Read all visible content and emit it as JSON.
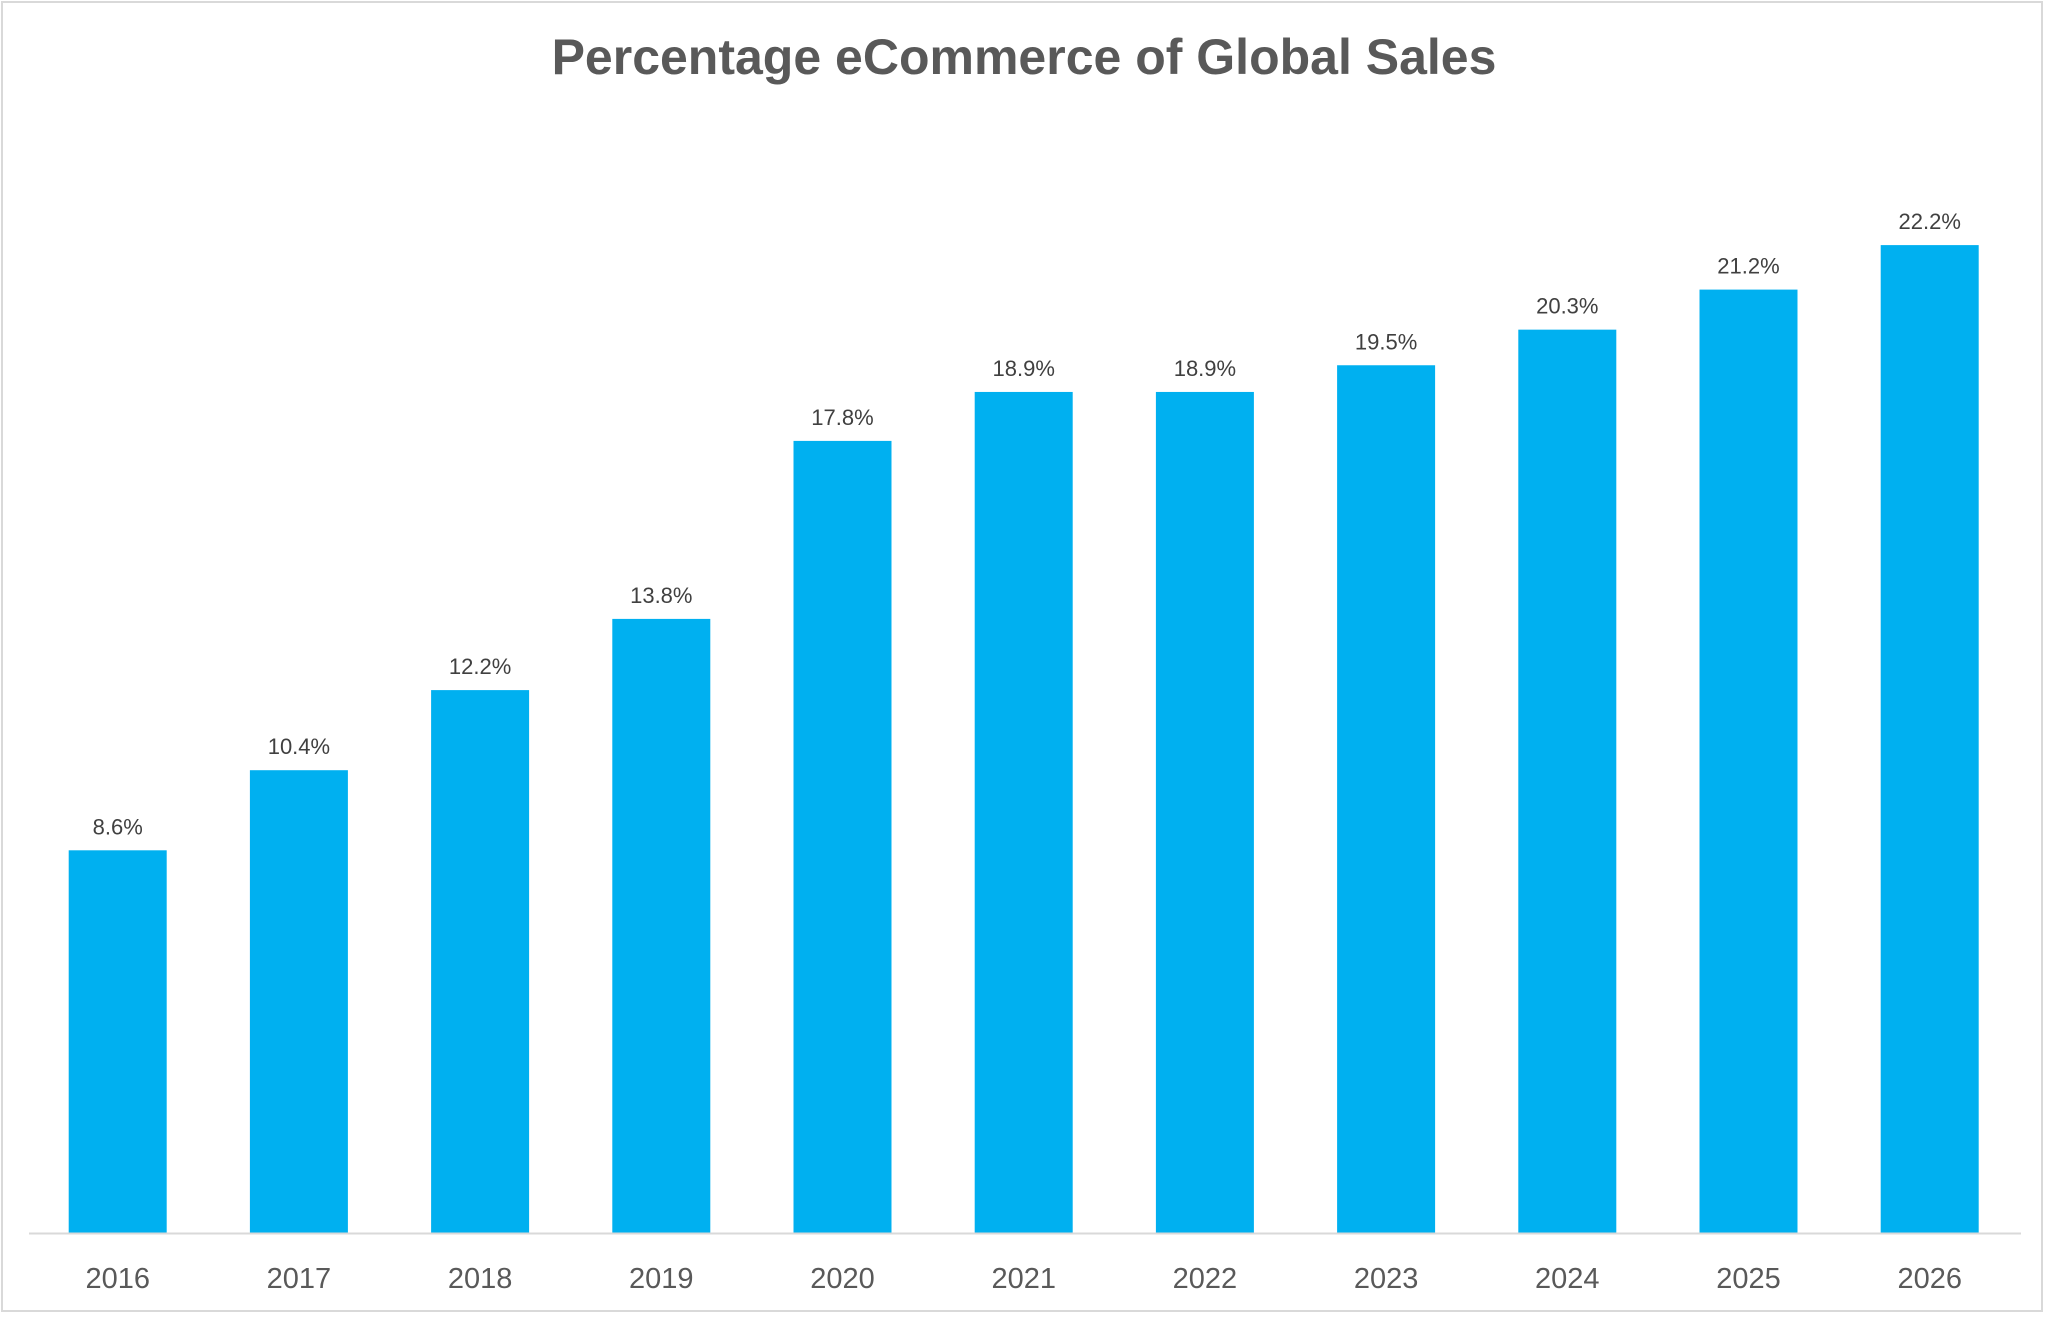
{
  "chart_data": {
    "type": "bar",
    "title": "Percentage eCommerce of Global Sales",
    "categories": [
      "2016",
      "2017",
      "2018",
      "2019",
      "2020",
      "2021",
      "2022",
      "2023",
      "2024",
      "2025",
      "2026"
    ],
    "values": [
      8.6,
      10.4,
      12.2,
      13.8,
      17.8,
      18.9,
      18.9,
      19.5,
      20.3,
      21.2,
      22.2
    ],
    "data_labels": [
      "8.6%",
      "10.4%",
      "12.2%",
      "13.8%",
      "17.8%",
      "18.9%",
      "18.9%",
      "19.5%",
      "20.3%",
      "21.2%",
      "22.2%"
    ],
    "xlabel": "",
    "ylabel": "",
    "y_axis_visible": false,
    "grid": false,
    "legend": "none",
    "colors": {
      "bar": "#00B0F0",
      "text": "#595959",
      "label": "#404040",
      "axis": "#d9d9d9"
    }
  }
}
